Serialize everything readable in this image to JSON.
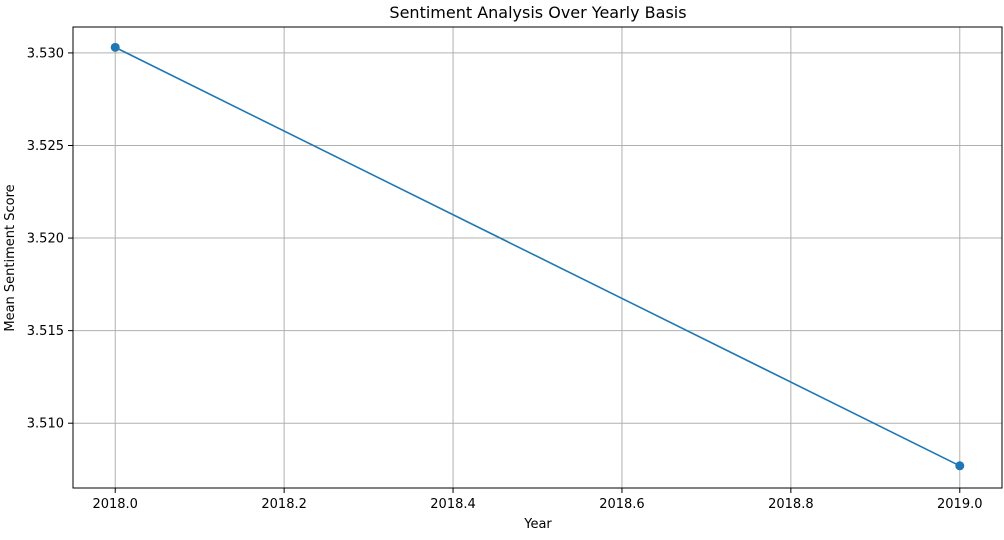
{
  "chart_data": {
    "type": "line",
    "title": "Sentiment Analysis Over Yearly Basis",
    "xlabel": "Year",
    "ylabel": "Mean Sentiment Score",
    "x": [
      2018.0,
      2019.0
    ],
    "series": [
      {
        "values": [
          3.5303,
          3.5077
        ],
        "color": "#1f77b4",
        "marker": "circle"
      }
    ],
    "xlim": [
      2017.95,
      2019.05
    ],
    "ylim": [
      3.5065,
      3.5314
    ],
    "xticks": [
      2018.0,
      2018.2,
      2018.4,
      2018.6,
      2018.8,
      2019.0
    ],
    "xtick_labels": [
      "2018.0",
      "2018.2",
      "2018.4",
      "2018.6",
      "2018.8",
      "2019.0"
    ],
    "yticks": [
      3.51,
      3.515,
      3.52,
      3.525,
      3.53
    ],
    "ytick_labels": [
      "3.510",
      "3.515",
      "3.520",
      "3.525",
      "3.530"
    ],
    "grid": true,
    "grid_color": "#b0b0b0",
    "axis_color": "#000000"
  }
}
